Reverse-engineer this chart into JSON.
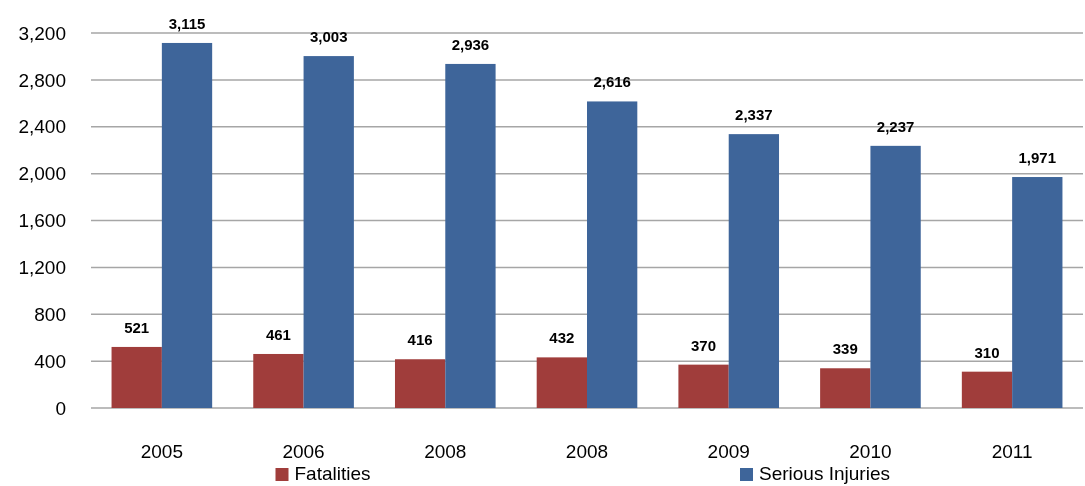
{
  "chart_data": {
    "type": "bar",
    "categories": [
      "2005",
      "2006",
      "2008",
      "2008",
      "2009",
      "2010",
      "2011"
    ],
    "series": [
      {
        "name": "Fatalities",
        "color": "#a03d3b",
        "values": [
          521,
          461,
          416,
          432,
          370,
          339,
          310
        ],
        "value_labels": [
          "521",
          "461",
          "416",
          "432",
          "370",
          "339",
          "310"
        ]
      },
      {
        "name": "Serious Injuries",
        "color": "#3e659a",
        "values": [
          3115,
          3003,
          2936,
          2616,
          2337,
          2237,
          1971
        ],
        "value_labels": [
          "3,115",
          "3,003",
          "2,936",
          "2,616",
          "2,337",
          "2,237",
          "1,971"
        ]
      }
    ],
    "ylim": [
      0,
      3200
    ],
    "yticks": [
      0,
      {
        "value": 400,
        "label": "400"
      },
      {
        "value": 800,
        "label": "800"
      },
      {
        "value": 1200,
        "label": "1,200"
      },
      {
        "value": 1600,
        "label": "1,600"
      },
      {
        "value": 2000,
        "label": "2,000"
      },
      {
        "value": 2400,
        "label": "2,400"
      },
      {
        "value": 2800,
        "label": "2,800"
      },
      {
        "value": 3200,
        "label": "3,200"
      }
    ],
    "grid": "y",
    "legend": "bottom"
  }
}
